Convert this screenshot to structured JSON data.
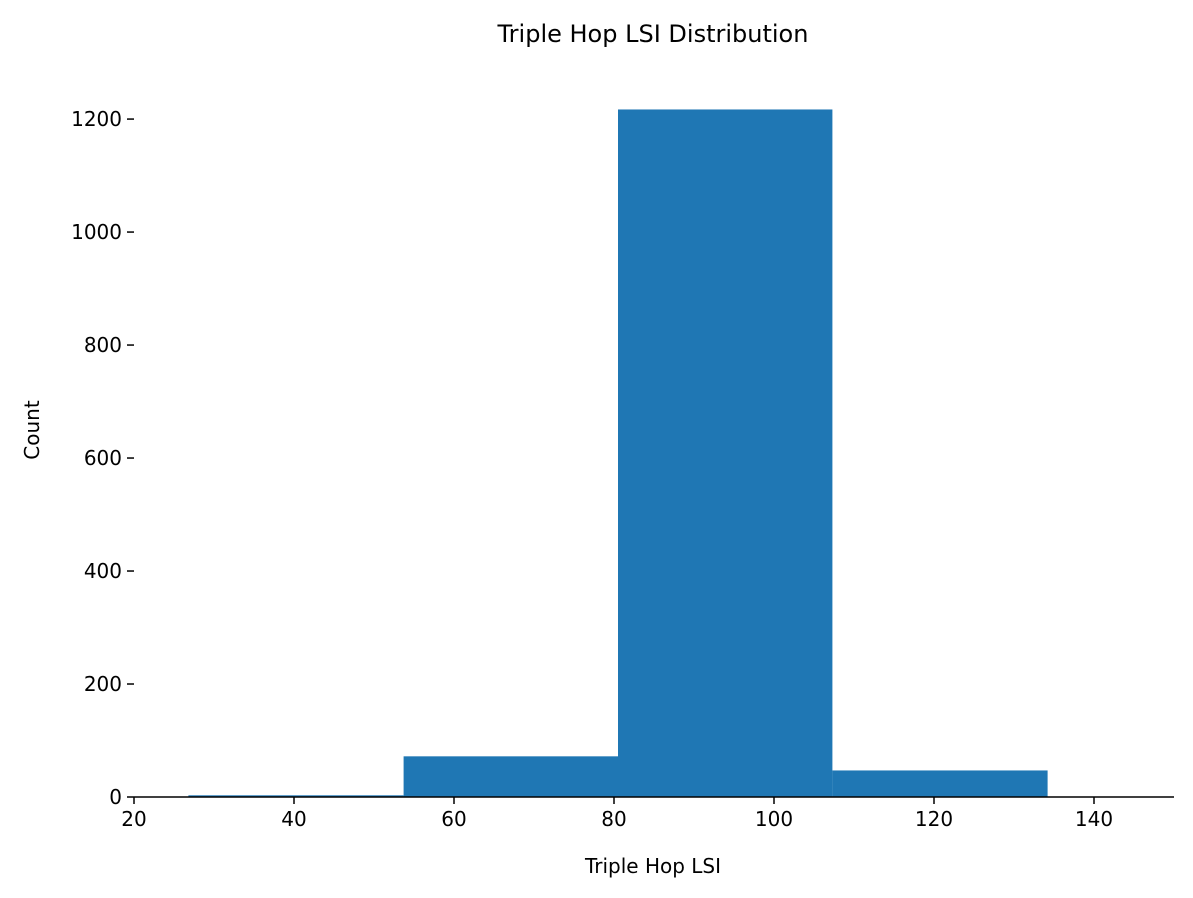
{
  "chart_data": {
    "type": "bar",
    "title": "Triple Hop LSI Distribution",
    "xlabel": "Triple Hop LSI",
    "ylabel": "Count",
    "xlim": [
      20,
      150
    ],
    "ylim": [
      0,
      1255
    ],
    "xticks": [
      20,
      40,
      60,
      80,
      100,
      120,
      140
    ],
    "yticks": [
      0,
      200,
      400,
      600,
      800,
      1000,
      1200
    ],
    "bins": [
      {
        "x0": 26.8,
        "x1": 53.7,
        "count": 3
      },
      {
        "x0": 53.7,
        "x1": 80.5,
        "count": 72
      },
      {
        "x0": 80.5,
        "x1": 107.3,
        "count": 1217
      },
      {
        "x0": 107.3,
        "x1": 134.2,
        "count": 47
      }
    ],
    "bar_color": "#1f77b4",
    "grid": false
  }
}
